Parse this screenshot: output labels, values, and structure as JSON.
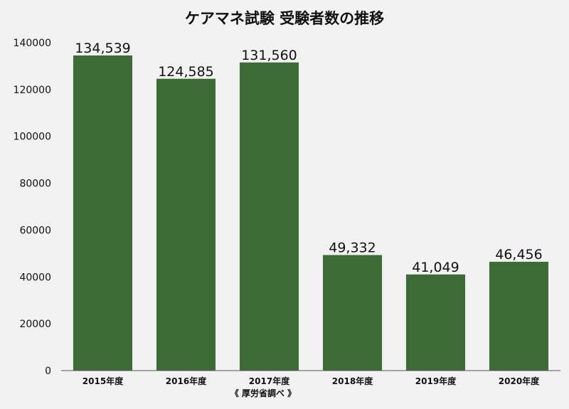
{
  "chart_data": {
    "type": "bar",
    "title": "ケアマネ試験 受験者数の推移",
    "categories": [
      "2015年度",
      "2016年度",
      "2017年度",
      "2018年度",
      "2019年度",
      "2020年度"
    ],
    "values": [
      134539,
      124585,
      131560,
      49332,
      41049,
      46456
    ],
    "value_labels": [
      "134,539",
      "124,585",
      "131,560",
      "49,332",
      "41,049",
      "46,456"
    ],
    "yticks": [
      "0",
      "20000",
      "40000",
      "60000",
      "80000",
      "100000",
      "120000",
      "140000"
    ],
    "ylim": [
      0,
      140000
    ],
    "xlabel": "",
    "ylabel": "",
    "grid": false,
    "bar_color": "#3d6b35",
    "source_note": "《 厚労省調べ 》"
  }
}
